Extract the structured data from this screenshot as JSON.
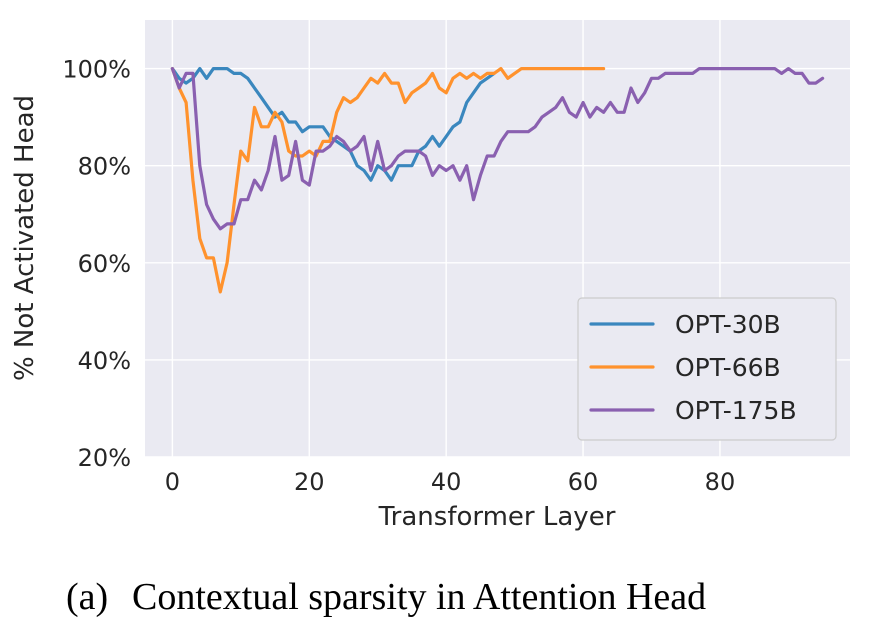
{
  "chart_data": {
    "type": "line",
    "xlabel": "Transformer Layer",
    "ylabel": "% Not Activated Head",
    "xlim": [
      -4,
      99
    ],
    "ylim": [
      20,
      110
    ],
    "x_ticks": [
      0,
      20,
      40,
      60,
      80
    ],
    "x_tick_labels": [
      "0",
      "20",
      "40",
      "60",
      "80"
    ],
    "y_ticks": [
      20,
      40,
      60,
      80,
      100
    ],
    "y_tick_labels": [
      "20%",
      "40%",
      "60%",
      "80%",
      "100%"
    ],
    "grid": true,
    "background": "#eaeaf2",
    "legend_position": "lower-right",
    "series": [
      {
        "name": "OPT-30B",
        "color": "#3a87be",
        "x": [
          0,
          1,
          2,
          3,
          4,
          5,
          6,
          7,
          8,
          9,
          10,
          11,
          12,
          13,
          14,
          15,
          16,
          17,
          18,
          19,
          20,
          21,
          22,
          23,
          24,
          25,
          26,
          27,
          28,
          29,
          30,
          31,
          32,
          33,
          34,
          35,
          36,
          37,
          38,
          39,
          40,
          41,
          42,
          43,
          44,
          45,
          46,
          47
        ],
        "y": [
          100,
          98,
          97,
          98,
          100,
          98,
          100,
          100,
          100,
          99,
          99,
          98,
          96,
          94,
          92,
          90,
          91,
          89,
          89,
          87,
          88,
          88,
          88,
          86,
          85,
          84,
          83,
          80,
          79,
          77,
          80,
          79,
          77,
          80,
          80,
          80,
          83,
          84,
          86,
          84,
          86,
          88,
          89,
          93,
          95,
          97,
          98,
          99
        ]
      },
      {
        "name": "OPT-66B",
        "color": "#ff922d",
        "x": [
          0,
          1,
          2,
          3,
          4,
          5,
          6,
          7,
          8,
          9,
          10,
          11,
          12,
          13,
          14,
          15,
          16,
          17,
          18,
          19,
          20,
          21,
          22,
          23,
          24,
          25,
          26,
          27,
          28,
          29,
          30,
          31,
          32,
          33,
          34,
          35,
          36,
          37,
          38,
          39,
          40,
          41,
          42,
          43,
          44,
          45,
          46,
          47,
          48,
          49,
          50,
          51,
          52,
          53,
          54,
          55,
          56,
          57,
          58,
          59,
          60,
          61,
          62,
          63
        ],
        "y": [
          100,
          96,
          93,
          77,
          65,
          61,
          61,
          54,
          60,
          72,
          83,
          81,
          92,
          88,
          88,
          91,
          89,
          83,
          82,
          82,
          83,
          82,
          85,
          85,
          91,
          94,
          93,
          94,
          96,
          98,
          97,
          99,
          97,
          97,
          93,
          95,
          96,
          97,
          99,
          96,
          95,
          98,
          99,
          98,
          99,
          98,
          99,
          99,
          100,
          98,
          99,
          100,
          100,
          100,
          100,
          100,
          100,
          100,
          100,
          100,
          100,
          100,
          100,
          100
        ]
      },
      {
        "name": "OPT-175B",
        "color": "#8a60b0",
        "x": [
          0,
          1,
          2,
          3,
          4,
          5,
          6,
          7,
          8,
          9,
          10,
          11,
          12,
          13,
          14,
          15,
          16,
          17,
          18,
          19,
          20,
          21,
          22,
          23,
          24,
          25,
          26,
          27,
          28,
          29,
          30,
          31,
          32,
          33,
          34,
          35,
          36,
          37,
          38,
          39,
          40,
          41,
          42,
          43,
          44,
          45,
          46,
          47,
          48,
          49,
          50,
          51,
          52,
          53,
          54,
          55,
          56,
          57,
          58,
          59,
          60,
          61,
          62,
          63,
          64,
          65,
          66,
          67,
          68,
          69,
          70,
          71,
          72,
          73,
          74,
          75,
          76,
          77,
          78,
          79,
          80,
          81,
          82,
          83,
          84,
          85,
          86,
          87,
          88,
          89,
          90,
          91,
          92,
          93,
          94,
          95
        ],
        "y": [
          100,
          96,
          99,
          99,
          80,
          72,
          69,
          67,
          68,
          68,
          73,
          73,
          77,
          75,
          79,
          86,
          77,
          78,
          85,
          77,
          76,
          83,
          83,
          84,
          86,
          85,
          83,
          84,
          86,
          79,
          85,
          79,
          80,
          82,
          83,
          83,
          83,
          82,
          78,
          80,
          79,
          80,
          77,
          80,
          73,
          78,
          82,
          82,
          85,
          87,
          87,
          87,
          87,
          88,
          90,
          91,
          92,
          94,
          91,
          90,
          93,
          90,
          92,
          91,
          93,
          91,
          91,
          96,
          93,
          95,
          98,
          98,
          99,
          99,
          99,
          99,
          99,
          100,
          100,
          100,
          100,
          100,
          100,
          100,
          100,
          100,
          100,
          100,
          100,
          99,
          100,
          99,
          99,
          97,
          97,
          98
        ]
      }
    ]
  },
  "caption": {
    "label": "(a)",
    "text": "Contextual sparsity in Attention Head"
  }
}
